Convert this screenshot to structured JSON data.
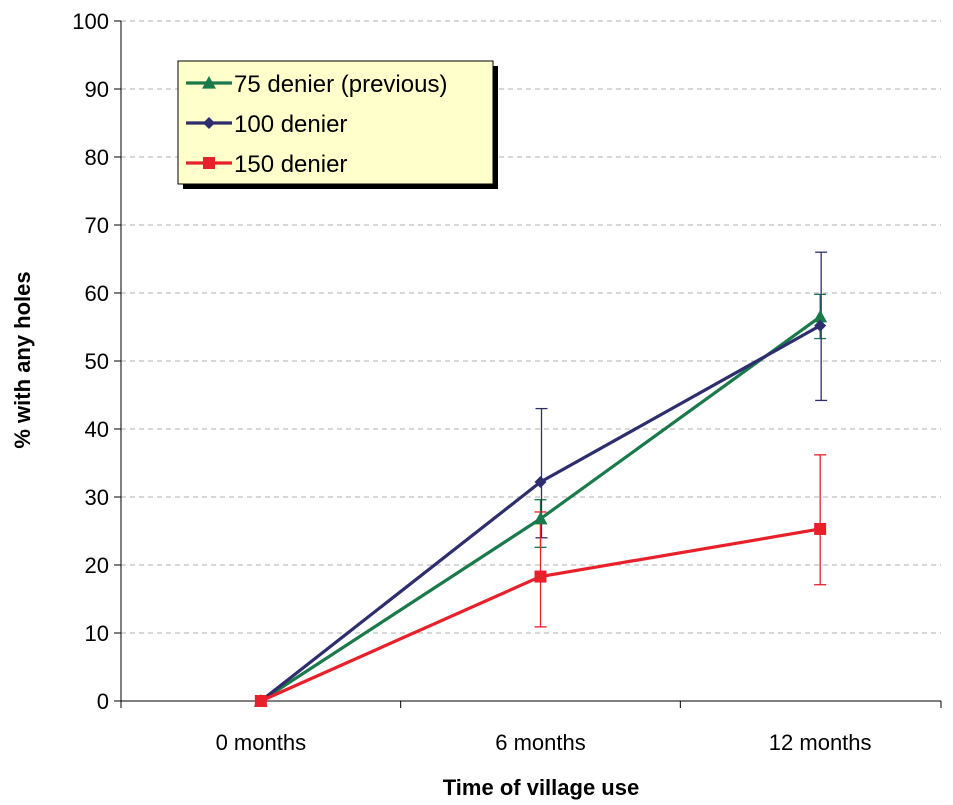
{
  "chart_data": {
    "type": "line",
    "title": "",
    "xlabel": "Time of village use",
    "ylabel": "% with any holes",
    "categories": [
      "0 months",
      "6 months",
      "12 months"
    ],
    "ylim": [
      0,
      100
    ],
    "yticks": [
      0,
      10,
      20,
      30,
      40,
      50,
      60,
      70,
      80,
      90,
      100
    ],
    "grid": "horizontal dashed",
    "legend_position": "top-left",
    "series": [
      {
        "name": "75 denier (previous)",
        "color": "#1a7a4a",
        "marker": "triangle",
        "values": [
          0,
          26.8,
          56.5
        ],
        "error_low": [
          null,
          22.6,
          53.3
        ],
        "error_high": [
          null,
          29.6,
          59.8
        ]
      },
      {
        "name": "100 denier",
        "color": "#2e2e6e",
        "marker": "diamond",
        "values": [
          0,
          32.2,
          55.2
        ],
        "error_low": [
          null,
          24.0,
          44.2
        ],
        "error_high": [
          null,
          43.0,
          66.0
        ]
      },
      {
        "name": "150 denier",
        "color": "#e8202a",
        "marker": "square",
        "values": [
          0,
          18.3,
          25.3
        ],
        "error_low": [
          null,
          10.9,
          17.1
        ],
        "error_high": [
          null,
          27.8,
          36.2
        ]
      }
    ]
  }
}
